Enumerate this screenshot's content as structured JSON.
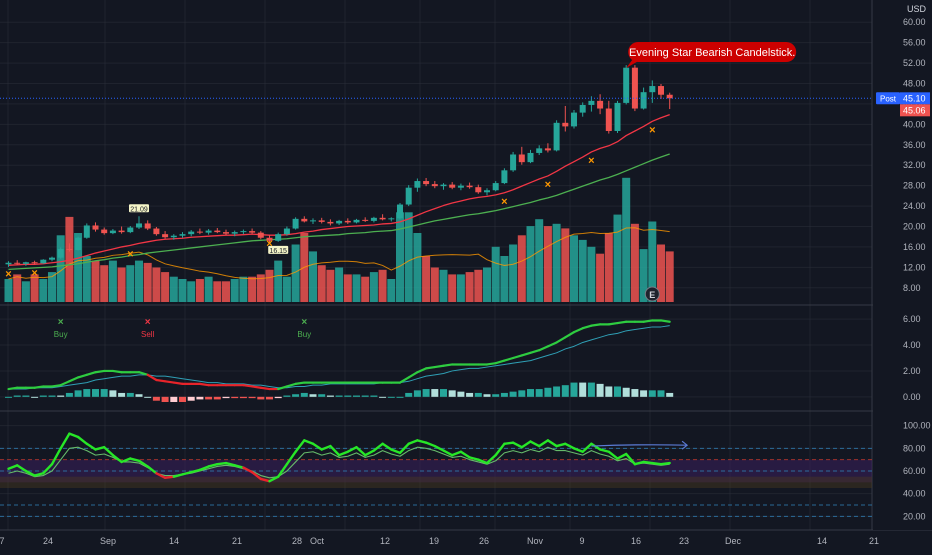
{
  "currency": "USD",
  "annotation": {
    "text": "Evening Star Bearish Candelstick."
  },
  "price_badges": {
    "post_label": "Post",
    "post_value": "45.10",
    "last_value": "45.06"
  },
  "event_marker": "E",
  "colors": {
    "up": "#26a69a",
    "down": "#ef5350",
    "background": "#131722",
    "grid": "#2a2e39",
    "ma_fast": "#f23645",
    "ma_slow": "#4caf50",
    "macd_line": "#2ecc40",
    "signal_line": "#2f9fb5",
    "rsi_fast": "#e8242a",
    "rsi_slow": "#66bb6a",
    "rsi_bull": "#27e627",
    "post_badge": "#2962ff",
    "annotation_bg": "#cc0000"
  },
  "chart_data": [
    {
      "type": "candlestick",
      "x_tick_labels": [
        "7",
        "24",
        "Sep",
        "14",
        "21",
        "28",
        "Oct",
        "12",
        "19",
        "26",
        "Nov",
        "9",
        "16",
        "23",
        "Dec",
        "14",
        "21"
      ],
      "y_tick_labels": [
        "8.00",
        "12.00",
        "16.00",
        "20.00",
        "24.00",
        "28.00",
        "32.00",
        "36.00",
        "40.00",
        "44.00",
        "48.00",
        "52.00",
        "56.00",
        "60.00"
      ],
      "ylim": [
        6,
        62
      ],
      "ohlc": [
        [
          12.6,
          13.2,
          12.1,
          12.9
        ],
        [
          12.9,
          13.4,
          12.5,
          12.7
        ],
        [
          12.7,
          13.1,
          12.3,
          13.0
        ],
        [
          13.0,
          13.3,
          12.6,
          12.8
        ],
        [
          12.8,
          13.6,
          12.7,
          13.5
        ],
        [
          13.5,
          14.1,
          13.2,
          13.9
        ],
        [
          13.9,
          15.9,
          13.7,
          15.6
        ],
        [
          15.6,
          16.7,
          15.1,
          15.4
        ],
        [
          15.4,
          18.0,
          15.3,
          17.8
        ],
        [
          17.8,
          20.6,
          17.6,
          20.2
        ],
        [
          20.2,
          20.8,
          19.0,
          19.4
        ],
        [
          19.4,
          19.8,
          18.4,
          18.7
        ],
        [
          18.7,
          19.5,
          18.5,
          19.2
        ],
        [
          19.2,
          20.0,
          18.6,
          18.9
        ],
        [
          18.9,
          20.1,
          18.7,
          19.8
        ],
        [
          19.8,
          22.0,
          19.5,
          20.6
        ],
        [
          20.6,
          21.2,
          19.3,
          19.6
        ],
        [
          19.6,
          19.9,
          18.2,
          18.5
        ],
        [
          18.5,
          19.1,
          17.6,
          17.9
        ],
        [
          17.9,
          18.5,
          17.4,
          18.2
        ],
        [
          18.2,
          18.9,
          17.8,
          18.5
        ],
        [
          18.5,
          19.3,
          18.1,
          19.0
        ],
        [
          19.0,
          19.6,
          18.5,
          18.8
        ],
        [
          18.8,
          19.5,
          18.4,
          19.2
        ],
        [
          19.2,
          19.7,
          18.7,
          18.9
        ],
        [
          18.9,
          19.4,
          18.3,
          18.6
        ],
        [
          18.6,
          19.2,
          18.1,
          18.9
        ],
        [
          18.9,
          19.4,
          18.5,
          19.1
        ],
        [
          19.1,
          19.6,
          18.6,
          18.8
        ],
        [
          18.8,
          19.1,
          17.5,
          17.8
        ],
        [
          17.8,
          18.3,
          16.9,
          17.2
        ],
        [
          17.2,
          18.8,
          17.0,
          18.5
        ],
        [
          18.5,
          20.0,
          18.2,
          19.6
        ],
        [
          19.6,
          21.8,
          19.4,
          21.5
        ],
        [
          21.5,
          22.0,
          20.8,
          21.0
        ],
        [
          21.0,
          21.6,
          20.5,
          21.2
        ],
        [
          21.2,
          21.7,
          20.6,
          20.9
        ],
        [
          20.9,
          21.4,
          20.2,
          20.6
        ],
        [
          20.6,
          21.3,
          20.3,
          21.1
        ],
        [
          21.1,
          21.6,
          20.5,
          20.8
        ],
        [
          20.8,
          21.5,
          20.6,
          21.3
        ],
        [
          21.3,
          21.8,
          20.9,
          21.1
        ],
        [
          21.1,
          21.9,
          20.8,
          21.7
        ],
        [
          21.7,
          22.4,
          21.2,
          21.4
        ],
        [
          21.4,
          21.8,
          21.0,
          21.6
        ],
        [
          21.6,
          24.6,
          21.4,
          24.3
        ],
        [
          24.3,
          28.1,
          24.0,
          27.6
        ],
        [
          27.6,
          29.4,
          26.8,
          28.9
        ],
        [
          28.9,
          29.5,
          27.9,
          28.3
        ],
        [
          28.3,
          28.9,
          27.5,
          27.9
        ],
        [
          27.9,
          28.5,
          27.2,
          28.2
        ],
        [
          28.2,
          28.7,
          27.3,
          27.6
        ],
        [
          27.6,
          28.4,
          27.1,
          28.0
        ],
        [
          28.0,
          28.6,
          27.4,
          27.7
        ],
        [
          27.7,
          28.2,
          26.4,
          26.7
        ],
        [
          26.7,
          27.5,
          26.1,
          27.1
        ],
        [
          27.1,
          28.9,
          26.9,
          28.5
        ],
        [
          28.5,
          31.4,
          28.3,
          31.0
        ],
        [
          31.0,
          34.6,
          30.7,
          34.1
        ],
        [
          34.1,
          35.6,
          32.1,
          32.6
        ],
        [
          32.6,
          35.0,
          32.4,
          34.4
        ],
        [
          34.4,
          35.9,
          34.0,
          35.3
        ],
        [
          35.3,
          36.3,
          34.5,
          34.9
        ],
        [
          34.9,
          40.8,
          34.7,
          40.3
        ],
        [
          40.3,
          43.6,
          38.6,
          39.6
        ],
        [
          39.6,
          42.8,
          39.2,
          42.3
        ],
        [
          42.3,
          44.3,
          41.5,
          43.8
        ],
        [
          43.8,
          45.5,
          42.5,
          44.6
        ],
        [
          44.6,
          45.9,
          42.0,
          43.1
        ],
        [
          43.1,
          44.6,
          38.2,
          38.7
        ],
        [
          38.7,
          44.6,
          38.3,
          44.2
        ],
        [
          44.2,
          51.6,
          43.9,
          51.1
        ],
        [
          51.1,
          51.6,
          42.6,
          43.1
        ],
        [
          43.1,
          47.2,
          42.9,
          46.3
        ],
        [
          46.3,
          48.6,
          44.2,
          47.5
        ],
        [
          47.5,
          47.9,
          45.0,
          45.8
        ],
        [
          45.8,
          46.2,
          43.0,
          45.1
        ]
      ],
      "ma_fast": [
        12.4,
        12.5,
        12.6,
        12.6,
        12.7,
        12.9,
        13.1,
        13.4,
        13.8,
        14.3,
        14.8,
        15.2,
        15.6,
        16.0,
        16.3,
        16.7,
        17.0,
        17.3,
        17.5,
        17.6,
        17.7,
        17.9,
        18.0,
        18.1,
        18.2,
        18.3,
        18.3,
        18.4,
        18.5,
        18.4,
        18.3,
        18.3,
        18.4,
        18.6,
        18.9,
        19.1,
        19.4,
        19.6,
        19.8,
        20.0,
        20.1,
        20.2,
        20.3,
        20.5,
        20.6,
        20.9,
        21.5,
        22.2,
        22.9,
        23.5,
        24.1,
        24.6,
        25.0,
        25.4,
        25.7,
        25.9,
        26.2,
        26.6,
        27.2,
        27.9,
        28.6,
        29.3,
        29.9,
        30.8,
        31.8,
        32.7,
        33.6,
        34.6,
        35.3,
        35.8,
        36.6,
        37.8,
        38.7,
        39.6,
        40.6,
        41.3,
        41.9
      ],
      "ma_slow": [
        11.6,
        11.7,
        11.8,
        11.9,
        12.0,
        12.1,
        12.3,
        12.5,
        12.7,
        13.0,
        13.3,
        13.5,
        13.8,
        14.0,
        14.3,
        14.5,
        14.8,
        15.0,
        15.2,
        15.4,
        15.6,
        15.8,
        16.0,
        16.2,
        16.4,
        16.6,
        16.8,
        17.0,
        17.2,
        17.3,
        17.4,
        17.5,
        17.6,
        17.8,
        18.0,
        18.1,
        18.2,
        18.3,
        18.4,
        18.6,
        18.7,
        18.8,
        19.0,
        19.1,
        19.2,
        19.5,
        19.9,
        20.3,
        20.7,
        21.1,
        21.4,
        21.7,
        22.0,
        22.3,
        22.5,
        22.8,
        23.1,
        23.5,
        23.9,
        24.3,
        24.7,
        25.2,
        25.6,
        26.1,
        26.7,
        27.3,
        27.9,
        28.5,
        29.1,
        29.6,
        30.2,
        30.9,
        31.6,
        32.3,
        33.0,
        33.6,
        34.2
      ],
      "volume": [
        0.1,
        0.12,
        0.09,
        0.12,
        0.1,
        0.13,
        0.29,
        0.37,
        0.3,
        0.2,
        0.18,
        0.16,
        0.18,
        0.15,
        0.16,
        0.18,
        0.17,
        0.15,
        0.13,
        0.11,
        0.1,
        0.09,
        0.1,
        0.11,
        0.09,
        0.09,
        0.1,
        0.11,
        0.11,
        0.12,
        0.14,
        0.18,
        0.11,
        0.25,
        0.3,
        0.22,
        0.16,
        0.14,
        0.15,
        0.12,
        0.12,
        0.11,
        0.13,
        0.14,
        0.1,
        0.39,
        0.39,
        0.3,
        0.2,
        0.15,
        0.14,
        0.12,
        0.12,
        0.13,
        0.14,
        0.15,
        0.24,
        0.2,
        0.25,
        0.29,
        0.33,
        0.36,
        0.33,
        0.34,
        0.32,
        0.29,
        0.27,
        0.24,
        0.21,
        0.3,
        0.38,
        0.54,
        0.34,
        0.23,
        0.35,
        0.25,
        0.22
      ],
      "ma_cross_marks": [
        0,
        3,
        14,
        30,
        57,
        62,
        67,
        74
      ],
      "price_label_boxes": [
        {
          "text": "21.09",
          "i": 15,
          "position": "above"
        },
        {
          "text": "16.15",
          "i": 31,
          "position": "below"
        }
      ]
    },
    {
      "type": "histogram_with_lines",
      "y_tick_labels": [
        "0.00",
        "2.00",
        "4.00",
        "6.00"
      ],
      "ylim": [
        -0.4,
        6.4
      ],
      "macd": [
        0.6,
        0.7,
        0.7,
        0.7,
        0.8,
        0.8,
        0.9,
        1.2,
        1.5,
        1.7,
        1.9,
        2.0,
        2.0,
        1.9,
        1.9,
        1.9,
        1.7,
        1.3,
        1.2,
        1.1,
        1.0,
        1.0,
        1.0,
        0.9,
        0.9,
        0.9,
        0.9,
        0.9,
        0.8,
        0.7,
        0.6,
        0.6,
        0.8,
        1.0,
        1.1,
        1.1,
        1.1,
        1.1,
        1.1,
        1.1,
        1.1,
        1.1,
        1.1,
        1.1,
        1.1,
        1.1,
        1.5,
        1.9,
        2.2,
        2.3,
        2.4,
        2.5,
        2.5,
        2.5,
        2.5,
        2.5,
        2.6,
        2.8,
        3.0,
        3.2,
        3.4,
        3.6,
        3.9,
        4.2,
        4.6,
        5.0,
        5.3,
        5.5,
        5.6,
        5.6,
        5.7,
        5.8,
        5.8,
        5.8,
        5.9,
        5.9,
        5.8
      ],
      "signal": [
        0.6,
        0.6,
        0.6,
        0.7,
        0.7,
        0.7,
        0.8,
        0.9,
        1.0,
        1.1,
        1.3,
        1.4,
        1.5,
        1.6,
        1.6,
        1.7,
        1.7,
        1.6,
        1.6,
        1.5,
        1.4,
        1.3,
        1.2,
        1.1,
        1.1,
        1.0,
        1.0,
        1.0,
        0.9,
        0.9,
        0.8,
        0.7,
        0.7,
        0.8,
        0.8,
        0.9,
        0.9,
        1.0,
        1.0,
        1.0,
        1.0,
        1.0,
        1.0,
        1.1,
        1.1,
        1.1,
        1.2,
        1.4,
        1.6,
        1.7,
        1.8,
        2.0,
        2.1,
        2.2,
        2.2,
        2.3,
        2.4,
        2.5,
        2.6,
        2.7,
        2.8,
        3.0,
        3.2,
        3.4,
        3.7,
        3.9,
        4.2,
        4.4,
        4.6,
        4.8,
        4.9,
        5.1,
        5.2,
        5.3,
        5.4,
        5.4,
        5.5
      ],
      "signals": [
        {
          "i": 6,
          "label": "Buy",
          "kind": "buy"
        },
        {
          "i": 16,
          "label": "Sell",
          "kind": "sell"
        },
        {
          "i": 34,
          "label": "Buy",
          "kind": "buy"
        }
      ]
    },
    {
      "type": "line",
      "y_tick_labels": [
        "20.00",
        "40.00",
        "60.00",
        "80.00",
        "100.00"
      ],
      "ylim": [
        15,
        105
      ],
      "bands": {
        "upper": 70,
        "lower": 50,
        "mid_upper": 55,
        "mid_lower": 45,
        "dashed": [
          80,
          70,
          60,
          30,
          20
        ]
      },
      "rsi_fast": [
        62,
        65,
        60,
        56,
        58,
        66,
        80,
        93,
        90,
        84,
        79,
        81,
        74,
        68,
        71,
        69,
        64,
        58,
        54,
        55,
        57,
        59,
        61,
        64,
        66,
        67,
        65,
        63,
        59,
        53,
        51,
        55,
        66,
        77,
        87,
        84,
        79,
        82,
        74,
        77,
        81,
        74,
        78,
        84,
        79,
        76,
        84,
        87,
        85,
        82,
        78,
        74,
        77,
        72,
        70,
        67,
        74,
        84,
        85,
        81,
        86,
        82,
        87,
        82,
        84,
        80,
        77,
        84,
        79,
        77,
        71,
        75,
        66,
        68,
        67,
        66,
        67
      ],
      "rsi_slow": [
        58,
        60,
        58,
        55,
        56,
        60,
        70,
        80,
        81,
        78,
        74,
        75,
        72,
        68,
        68,
        67,
        63,
        58,
        56,
        56,
        57,
        58,
        60,
        62,
        64,
        65,
        64,
        62,
        60,
        56,
        54,
        55,
        60,
        68,
        76,
        77,
        74,
        76,
        72,
        73,
        76,
        72,
        74,
        78,
        75,
        73,
        78,
        81,
        80,
        78,
        75,
        72,
        73,
        70,
        68,
        66,
        69,
        76,
        78,
        76,
        79,
        77,
        81,
        78,
        78,
        76,
        74,
        78,
        75,
        73,
        69,
        71,
        66,
        67,
        66,
        65,
        66
      ],
      "projection": {
        "from_i": 67,
        "to_i": 78,
        "from_y": 82,
        "to_y": 81
      }
    }
  ]
}
